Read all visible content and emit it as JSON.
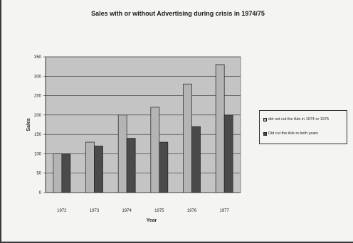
{
  "chart_data": {
    "type": "bar",
    "title": "Sales with or without Advertising during crisis in 1974/75",
    "xlabel": "Year",
    "ylabel": "Sales",
    "categories": [
      "1972",
      "1973",
      "1974",
      "1975",
      "1976",
      "1977"
    ],
    "series": [
      {
        "name": "did not cut the Ads in 1974 or 1975",
        "values": [
          100,
          130,
          200,
          220,
          280,
          330
        ],
        "color": "#b4b4b4"
      },
      {
        "name": "Did cut the Ads in both years",
        "values": [
          100,
          120,
          140,
          130,
          170,
          200
        ],
        "color": "#4a4a4a"
      }
    ],
    "ylim": [
      0,
      350
    ],
    "yticks": [
      "0",
      "50",
      "100",
      "150",
      "200",
      "250",
      "300",
      "350"
    ],
    "grid": true,
    "plot_background": "#c4c4c4",
    "legend_position": "right"
  }
}
